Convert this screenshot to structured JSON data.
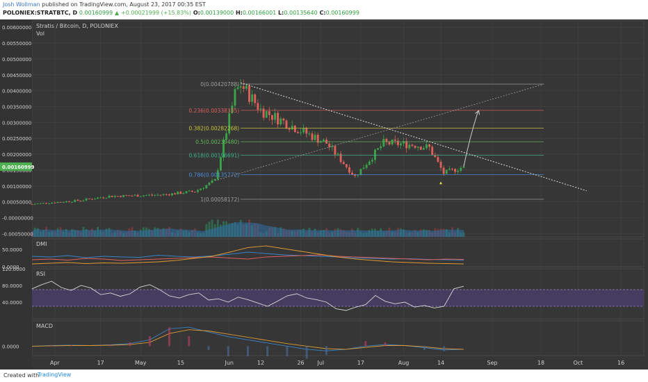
{
  "header": {
    "author": "Josh Wollman",
    "published": "published on TradingView.com, August 23, 2017 00:35 EST",
    "ticker": "POLONIEX:STRATBTC, D",
    "last": "0.00160999",
    "arrow": "▲",
    "change": "+0.00021999 (+15.83%)",
    "o_label": "O:",
    "o": "0.00139000",
    "h_label": "H:",
    "h": "0.00166001",
    "l_label": "L:",
    "l": "0.00135640",
    "c_label": "C:",
    "c": "0.00160999"
  },
  "footer": {
    "created": "Created with",
    "brand": "TradingView"
  },
  "colors": {
    "up": "#3aa34a",
    "down": "#e0605a",
    "background": "#363636",
    "price_tag": "#4caf50",
    "rsi_band": "#4a3f6b"
  },
  "chart_data": [
    {
      "type": "candlestick",
      "title": "Stratis / Bitcoin, D, POLONIEX",
      "volume_label": "Vol",
      "ylim": [
        -0.0006,
        0.0062
      ],
      "yticks": [
        "0.00600000",
        "0.00550000",
        "0.00500000",
        "0.00450000",
        "0.00400000",
        "0.00350000",
        "0.00300000",
        "0.00250000",
        "0.00200000",
        "0.00150000",
        "0.00100000",
        "0.00050000",
        "-0.00000000",
        "-0.00050000"
      ],
      "xticks": [
        "Apr",
        "17",
        "May",
        "15",
        "Jun",
        "12",
        "26",
        "Jul",
        "17",
        "Aug",
        "14",
        "Sep",
        "18",
        "Oct",
        "16"
      ],
      "last_price_tag": "0.00160999",
      "key_points": [
        {
          "date": "2017-03-24",
          "close": 0.00043
        },
        {
          "date": "2017-04-10",
          "close": 0.00055
        },
        {
          "date": "2017-04-20",
          "close": 0.00068
        },
        {
          "date": "2017-05-08",
          "close": 0.00072
        },
        {
          "date": "2017-05-20",
          "close": 0.00083
        },
        {
          "date": "2017-05-27",
          "close": 0.00117
        },
        {
          "date": "2017-06-03",
          "close": 0.0039
        },
        {
          "date": "2017-06-05",
          "close": 0.0042
        },
        {
          "date": "2017-06-12",
          "close": 0.0034
        },
        {
          "date": "2017-06-26",
          "close": 0.00275
        },
        {
          "date": "2017-07-05",
          "close": 0.00235
        },
        {
          "date": "2017-07-15",
          "close": 0.0013
        },
        {
          "date": "2017-07-25",
          "close": 0.00235
        },
        {
          "date": "2017-08-05",
          "close": 0.0023
        },
        {
          "date": "2017-08-10",
          "close": 0.0022
        },
        {
          "date": "2017-08-15",
          "close": 0.0014
        },
        {
          "date": "2017-08-22",
          "close": 0.00161
        }
      ],
      "fibonacci": [
        {
          "label": "0(0.00420788)",
          "value": 0.00420788,
          "color": "#9e9e9e"
        },
        {
          "label": "0.236(0.00338335)",
          "value": 0.00338335,
          "color": "#e0605a"
        },
        {
          "label": "0.382(0.00282268)",
          "value": 0.00282268,
          "color": "#c8c838"
        },
        {
          "label": "0.5(0.00239480)",
          "value": 0.0023948,
          "color": "#63b85a"
        },
        {
          "label": "0.618(0.00196691)",
          "value": 0.00196691,
          "color": "#3bb08c"
        },
        {
          "label": "0.786(0.00135772)",
          "value": 0.00135772,
          "color": "#4a8fd8"
        },
        {
          "label": "1(0.00058172)",
          "value": 0.00058172,
          "color": "#9e9e9e"
        }
      ],
      "projection_arrow": {
        "from": {
          "date": "2017-08-22",
          "value": 0.00161
        },
        "to": {
          "date": "2017-08-27",
          "value": 0.00335
        }
      }
    },
    {
      "type": "line",
      "title": "DMI",
      "ylim": [
        0,
        80
      ],
      "yticks": [
        "50.0000",
        "0.0000"
      ],
      "series": [
        {
          "color": "#3a84c8",
          "values": [
            30,
            28,
            32,
            26,
            30,
            28,
            27,
            33,
            30,
            28,
            31,
            36,
            42,
            38,
            34,
            32,
            30,
            28,
            25,
            24,
            22,
            23,
            21,
            20,
            19
          ]
        },
        {
          "color": "#e0605a",
          "values": [
            20,
            22,
            19,
            24,
            22,
            18,
            20,
            22,
            24,
            26,
            28,
            25,
            22,
            28,
            30,
            32,
            34,
            30,
            28,
            26,
            24,
            22,
            20,
            22,
            21
          ]
        },
        {
          "color": "#e09a30",
          "values": [
            8,
            10,
            12,
            9,
            11,
            10,
            12,
            14,
            18,
            24,
            30,
            42,
            55,
            60,
            52,
            44,
            36,
            28,
            22,
            18,
            14,
            12,
            10,
            9,
            8
          ]
        }
      ]
    },
    {
      "type": "line",
      "title": "RSI",
      "ylim": [
        0,
        120
      ],
      "yticks": [
        "120.0000",
        "80.0000",
        "40.0000"
      ],
      "band": [
        30,
        70
      ],
      "series": [
        {
          "color": "#d8d8d8",
          "values": [
            72,
            82,
            90,
            75,
            68,
            80,
            74,
            58,
            62,
            54,
            60,
            76,
            82,
            70,
            55,
            50,
            58,
            62,
            45,
            48,
            40,
            52,
            46,
            38,
            30,
            42,
            55,
            60,
            50,
            46,
            40,
            24,
            20,
            28,
            34,
            56,
            42,
            36,
            40,
            28,
            32,
            26,
            30,
            72,
            78
          ]
        }
      ]
    },
    {
      "type": "line",
      "title": "MACD",
      "ylim": [
        -0.0003,
        0.0008
      ],
      "yticks": [
        "0.0000"
      ],
      "series": [
        {
          "color": "#3a84c8",
          "values": [
            0,
            2e-05,
            3e-05,
            2e-05,
            4e-05,
            8e-05,
            0.0002,
            0.00055,
            0.0006,
            0.00045,
            0.0003,
            0.0002,
            0.0001,
            0,
            -0.0001,
            -0.00015,
            -0.0001,
            0,
            5e-05,
            2e-05,
            -5e-05,
            -0.00012,
            -0.0001
          ]
        },
        {
          "color": "#e09a30",
          "values": [
            0,
            1e-05,
            2e-05,
            2e-05,
            3e-05,
            5e-05,
            0.00012,
            0.0004,
            0.00052,
            0.00048,
            0.00038,
            0.00028,
            0.00018,
            8e-05,
            0,
            -8e-05,
            -0.0001,
            -4e-05,
            2e-05,
            2e-05,
            -2e-05,
            -8e-05,
            -0.0001
          ]
        }
      ]
    }
  ]
}
